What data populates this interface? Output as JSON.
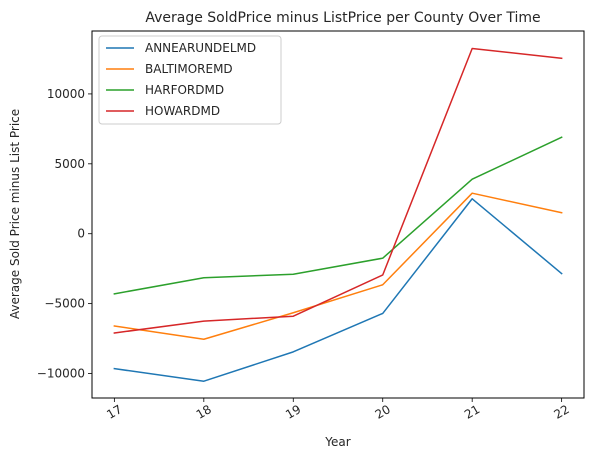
{
  "chart_data": {
    "type": "line",
    "title": "Average SoldPrice minus ListPrice per County Over Time",
    "xlabel": "Year",
    "ylabel": "Average Sold Price minus List Price",
    "x": [
      "17",
      "18",
      "19",
      "20",
      "21",
      "22"
    ],
    "xlim": [
      16.75,
      22.25
    ],
    "ylim": [
      -11750,
      14500
    ],
    "yticks": [
      -10000,
      -5000,
      0,
      5000,
      10000
    ],
    "grid": false,
    "legend_position": "upper-left",
    "series": [
      {
        "name": "ANNEARUNDELMD",
        "color": "#1f77b4",
        "values": [
          -9650,
          -10550,
          -8450,
          -5700,
          2500,
          -2850
        ]
      },
      {
        "name": "BALTIMOREMD",
        "color": "#ff7f0e",
        "values": [
          -6600,
          -7550,
          -5650,
          -3650,
          2900,
          1500
        ]
      },
      {
        "name": "HARFORDMD",
        "color": "#2ca02c",
        "values": [
          -4300,
          -3150,
          -2900,
          -1750,
          3900,
          6900
        ]
      },
      {
        "name": "HOWARDMD",
        "color": "#d62728",
        "values": [
          -7100,
          -6250,
          -5900,
          -2950,
          13250,
          12550
        ]
      }
    ]
  }
}
